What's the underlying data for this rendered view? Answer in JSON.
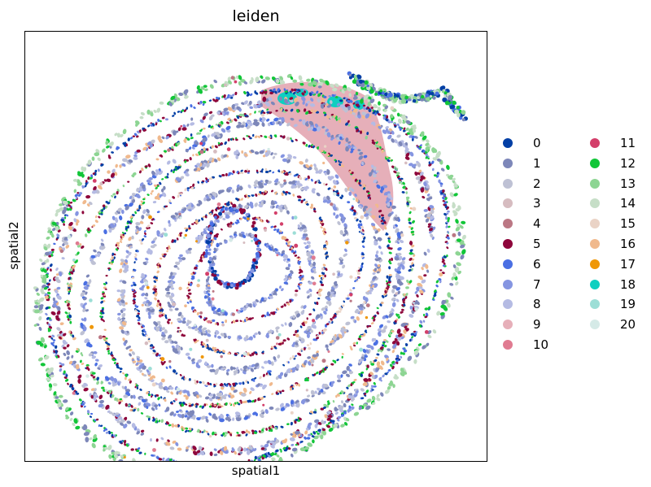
{
  "chart_data": {
    "type": "scatter",
    "title": "leiden",
    "xlabel": "spatial1",
    "ylabel": "spatial2",
    "grid": false,
    "legend_position": "right, outside plot, two columns",
    "clusters": [
      {
        "name": "0",
        "color": "#023fa5"
      },
      {
        "name": "1",
        "color": "#7d87b9"
      },
      {
        "name": "2",
        "color": "#bec1d4"
      },
      {
        "name": "3",
        "color": "#d6bcc0"
      },
      {
        "name": "4",
        "color": "#bb7784"
      },
      {
        "name": "5",
        "color": "#8e063b"
      },
      {
        "name": "6",
        "color": "#4a6fe3"
      },
      {
        "name": "7",
        "color": "#8595e1"
      },
      {
        "name": "8",
        "color": "#b5bbe3"
      },
      {
        "name": "9",
        "color": "#e6afb9"
      },
      {
        "name": "10",
        "color": "#e07b91"
      },
      {
        "name": "11",
        "color": "#d33f6a"
      },
      {
        "name": "12",
        "color": "#11c638"
      },
      {
        "name": "13",
        "color": "#8dd593"
      },
      {
        "name": "14",
        "color": "#c6dec7"
      },
      {
        "name": "15",
        "color": "#ead3c6"
      },
      {
        "name": "16",
        "color": "#f0b98d"
      },
      {
        "name": "17",
        "color": "#ef9708"
      },
      {
        "name": "18",
        "color": "#0fcfc0"
      },
      {
        "name": "19",
        "color": "#9cded6"
      },
      {
        "name": "20",
        "color": "#d5eae7"
      }
    ],
    "tissue_shape": "concentric spiral rings of cells with a hooked tail at top-right"
  }
}
